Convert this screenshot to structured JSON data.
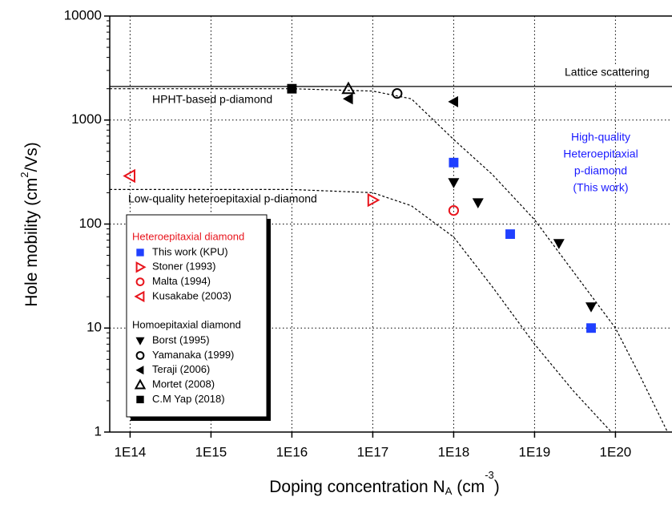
{
  "chart_data": {
    "type": "scatter",
    "log_x": true,
    "log_y": true,
    "grid": true,
    "xlim": [
      56000000000000.0,
      5e+20
    ],
    "ylim": [
      1,
      10000
    ],
    "xticks": [
      {
        "value": 100000000000000.0,
        "label": "1E14"
      },
      {
        "value": 1000000000000000.0,
        "label": "1E15"
      },
      {
        "value": 1e+16,
        "label": "1E16"
      },
      {
        "value": 1e+17,
        "label": "1E17"
      },
      {
        "value": 1e+18,
        "label": "1E18"
      },
      {
        "value": 1e+19,
        "label": "1E19"
      },
      {
        "value": 1e+20,
        "label": "1E20"
      }
    ],
    "yticks": [
      1,
      10,
      100,
      1000,
      10000
    ],
    "y_label": [
      "Hole mobility (cm",
      "2",
      "/Vs)"
    ],
    "x_label": [
      "Doping concentration N",
      "A",
      " (cm",
      "-3",
      ")"
    ],
    "curves": [
      {
        "name": "Lattice scattering",
        "style": "solid",
        "x": [
          56000000000000.0,
          5e+20
        ],
        "values": [
          2100,
          2100
        ]
      },
      {
        "name": "HPHT-based p-diamond",
        "style": "dashed",
        "x": [
          56000000000000.0,
          1e+16,
          1e+17,
          3e+17,
          1e+18,
          3e+18,
          1e+19,
          3e+19,
          1e+20,
          2e+20,
          4.4e+20
        ],
        "values": [
          2000,
          2000,
          1900,
          1600,
          650,
          300,
          110,
          35,
          10,
          3.5,
          1
        ]
      },
      {
        "name": "Low-quality heteroepitaxial p-diamond",
        "style": "dashed",
        "x": [
          56000000000000.0,
          1e+16,
          1e+17,
          3e+17,
          1e+18,
          3e+18,
          1e+19,
          3e+19,
          8.9e+19
        ],
        "values": [
          215,
          215,
          200,
          150,
          75,
          25,
          7,
          2.5,
          1
        ]
      }
    ],
    "annotation": [
      "High-quality",
      "Heteroepitaxial",
      "p-diamond",
      "(This work)"
    ],
    "annotation_color": "#1a1aff",
    "groups": [
      {
        "title": "Heteroepitaxial diamond",
        "color": "#e8141c",
        "series": [
          {
            "name": "This work (KPU)",
            "color": "#2040ff",
            "marker": "square",
            "x": [
              1e+18,
              5e+18,
              5e+19
            ],
            "values": [
              390,
              80,
              10
            ]
          },
          {
            "name": "Stoner (1993)",
            "color": "#e8141c",
            "marker": "triangle-right-open",
            "x": [
              1e+17
            ],
            "values": [
              170
            ]
          },
          {
            "name": "Malta (1994)",
            "color": "#e8141c",
            "marker": "circle-open",
            "x": [
              1e+18
            ],
            "values": [
              135
            ]
          },
          {
            "name": "Kusakabe (2003)",
            "color": "#e8141c",
            "marker": "triangle-left-open",
            "x": [
              100000000000000.0
            ],
            "values": [
              290
            ]
          }
        ]
      },
      {
        "title": "Homoepitaxial diamond",
        "color": "#000000",
        "series": [
          {
            "name": "Borst (1995)",
            "color": "#000000",
            "marker": "triangle-down",
            "x": [
              1e+18,
              2e+18,
              2e+19,
              5e+19
            ],
            "values": [
              250,
              160,
              65,
              16
            ]
          },
          {
            "name": "Yamanaka (1999)",
            "color": "#000000",
            "marker": "circle-open",
            "x": [
              2e+17
            ],
            "values": [
              1800
            ]
          },
          {
            "name": "Teraji (2006)",
            "color": "#000000",
            "marker": "triangle-left",
            "x": [
              5e+16,
              1e+18
            ],
            "values": [
              1600,
              1500
            ]
          },
          {
            "name": "Mortet (2008)",
            "color": "#000000",
            "marker": "triangle-up-open",
            "x": [
              5e+16
            ],
            "values": [
              2000
            ]
          },
          {
            "name": "C.M Yap (2018)",
            "color": "#000000",
            "marker": "square",
            "x": [
              1e+16
            ],
            "values": [
              2000
            ]
          }
        ]
      }
    ]
  }
}
